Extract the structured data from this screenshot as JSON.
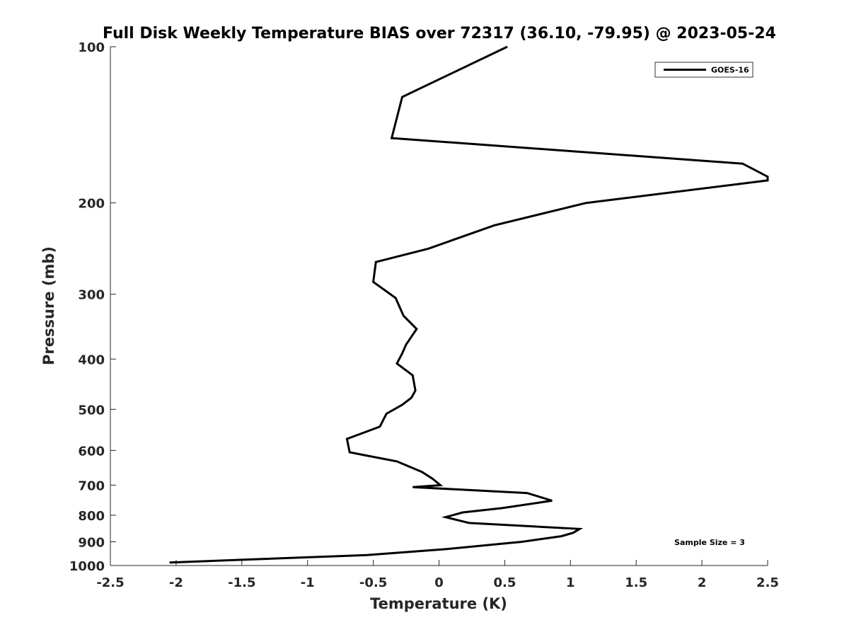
{
  "chart_data": {
    "type": "line",
    "title": "Full Disk Weekly Temperature BIAS over 72317 (36.10, -79.95) @ 2023-05-24",
    "xlabel": "Temperature (K)",
    "ylabel": "Pressure (mb)",
    "xlim": [
      -2.5,
      2.5
    ],
    "ylim": [
      1000,
      100
    ],
    "yscale": "log",
    "y_reversed": true,
    "x_ticks": [
      -2.5,
      -2,
      -1.5,
      -1,
      -0.5,
      0,
      0.5,
      1,
      1.5,
      2,
      2.5
    ],
    "x_tick_labels": [
      "-2.5",
      "-2",
      "-1.5",
      "-1",
      "-0.5",
      "0",
      "0.5",
      "1",
      "1.5",
      "2",
      "2.5"
    ],
    "y_ticks": [
      100,
      200,
      300,
      400,
      500,
      600,
      700,
      800,
      900,
      1000
    ],
    "y_tick_labels": [
      "100",
      "200",
      "300",
      "400",
      "500",
      "600",
      "700",
      "800",
      "900",
      "1000"
    ],
    "legend_position": "top-right",
    "grid": false,
    "annotation": "Sample Size = 3",
    "series": [
      {
        "name": "GOES-16",
        "color": "#000000",
        "points": [
          [
            0.52,
            100
          ],
          [
            -0.28,
            125
          ],
          [
            -0.36,
            150
          ],
          [
            2.31,
            168
          ],
          [
            2.5,
            178
          ],
          [
            2.5,
            181
          ],
          [
            1.12,
            200
          ],
          [
            0.42,
            221
          ],
          [
            -0.08,
            245
          ],
          [
            -0.48,
            260
          ],
          [
            -0.5,
            284
          ],
          [
            -0.33,
            305
          ],
          [
            -0.27,
            330
          ],
          [
            -0.17,
            350
          ],
          [
            -0.25,
            375
          ],
          [
            -0.28,
            390
          ],
          [
            -0.32,
            408
          ],
          [
            -0.2,
            430
          ],
          [
            -0.18,
            460
          ],
          [
            -0.21,
            475
          ],
          [
            -0.28,
            490
          ],
          [
            -0.4,
            510
          ],
          [
            -0.45,
            540
          ],
          [
            -0.7,
            570
          ],
          [
            -0.68,
            605
          ],
          [
            -0.32,
            630
          ],
          [
            -0.13,
            660
          ],
          [
            -0.05,
            680
          ],
          [
            0.01,
            700
          ],
          [
            -0.2,
            706
          ],
          [
            0.67,
            725
          ],
          [
            0.86,
            750
          ],
          [
            0.48,
            775
          ],
          [
            0.18,
            790
          ],
          [
            0.05,
            807
          ],
          [
            0.23,
            828
          ],
          [
            1.07,
            850
          ],
          [
            1.02,
            865
          ],
          [
            0.93,
            878
          ],
          [
            0.63,
            900
          ],
          [
            0.05,
            930
          ],
          [
            -0.55,
            955
          ],
          [
            -1.5,
            975
          ],
          [
            -2.05,
            987
          ]
        ]
      }
    ]
  }
}
